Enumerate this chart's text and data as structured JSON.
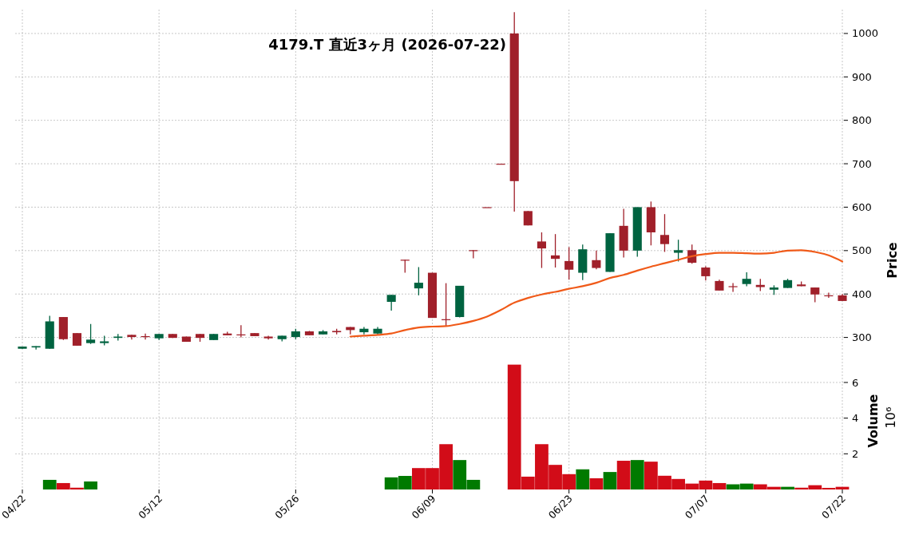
{
  "chart_data": [
    {
      "type": "candlestick",
      "title": "4179.T  直近3ヶ月  (2026-07-22)",
      "ylabel": "Price",
      "grid": true,
      "tick_labels": "y",
      "categories": [
        null,
        null,
        null,
        null,
        null,
        null,
        null,
        null,
        null,
        null,
        null,
        null,
        null,
        null,
        null,
        null,
        null,
        null,
        null,
        null,
        null,
        null,
        null,
        null,
        null,
        null,
        null,
        null,
        null,
        null,
        null,
        null,
        null,
        null,
        null,
        null,
        null,
        null,
        null,
        null,
        null,
        null,
        null,
        null,
        null,
        null,
        null,
        null,
        null,
        null,
        null,
        null,
        null,
        null,
        null,
        null,
        null,
        null,
        null,
        null,
        null
      ],
      "ohlc": [
        [
          274,
          279,
          274,
          279
        ],
        [
          277,
          280,
          272,
          280
        ],
        [
          274,
          350,
          274,
          337
        ],
        [
          347,
          347,
          294,
          296
        ],
        [
          310,
          310,
          281,
          281
        ],
        [
          287,
          331,
          285,
          295
        ],
        [
          287,
          304,
          282,
          291
        ],
        [
          299,
          308,
          293,
          302
        ],
        [
          306,
          306,
          295,
          301
        ],
        [
          303,
          309,
          295,
          301
        ],
        [
          298,
          308,
          294,
          308
        ],
        [
          308,
          308,
          299,
          299
        ],
        [
          302,
          302,
          290,
          290
        ],
        [
          308,
          308,
          290,
          299
        ],
        [
          294,
          308,
          294,
          308
        ],
        [
          309,
          313,
          305,
          305
        ],
        [
          307,
          328,
          300,
          305
        ],
        [
          310,
          310,
          303,
          303
        ],
        [
          302,
          304,
          295,
          298
        ],
        [
          296,
          304,
          291,
          304
        ],
        [
          301,
          320,
          296,
          314
        ],
        [
          314,
          315,
          305,
          305
        ],
        [
          307,
          317,
          307,
          314
        ],
        [
          315,
          320,
          307,
          312
        ],
        [
          324,
          324,
          307,
          317
        ],
        [
          312,
          324,
          307,
          320
        ],
        [
          309,
          324,
          307,
          320
        ],
        [
          382,
          398,
          362,
          398
        ],
        [
          479,
          479,
          449,
          478
        ],
        [
          413,
          462,
          397,
          426
        ],
        [
          449,
          449,
          345,
          345
        ],
        [
          342,
          425,
          326,
          341
        ],
        [
          347,
          419,
          346,
          419
        ],
        [
          501,
          501,
          482,
          500
        ],
        [
          600,
          600,
          600,
          600
        ],
        [
          700,
          700,
          700,
          700
        ],
        [
          1000,
          1049,
          590,
          660
        ],
        [
          591,
          591,
          558,
          558
        ],
        [
          521,
          542,
          460,
          505
        ],
        [
          489,
          538,
          461,
          481
        ],
        [
          476,
          508,
          433,
          456
        ],
        [
          449,
          514,
          432,
          503
        ],
        [
          478,
          500,
          457,
          460
        ],
        [
          451,
          540,
          451,
          540
        ],
        [
          557,
          596,
          484,
          500
        ],
        [
          500,
          600,
          486,
          600
        ],
        [
          600,
          613,
          512,
          542
        ],
        [
          536,
          584,
          497,
          515
        ],
        [
          495,
          525,
          475,
          501
        ],
        [
          501,
          514,
          470,
          472
        ],
        [
          461,
          464,
          431,
          441
        ],
        [
          430,
          433,
          408,
          408
        ],
        [
          418,
          425,
          405,
          416
        ],
        [
          423,
          450,
          418,
          435
        ],
        [
          421,
          435,
          407,
          416
        ],
        [
          410,
          420,
          398,
          415
        ],
        [
          414,
          435,
          414,
          432
        ],
        [
          422,
          429,
          418,
          418
        ],
        [
          415,
          415,
          381,
          399
        ],
        [
          397,
          403,
          391,
          396
        ],
        [
          397,
          400,
          384,
          384
        ]
      ],
      "colors": [
        "#006340",
        "#006340",
        "#006340",
        "#a0202a",
        "#a0202a",
        "#006340",
        "#006340",
        "#006340",
        "#a0202a",
        "#a0202a",
        "#006340",
        "#a0202a",
        "#a0202a",
        "#a0202a",
        "#006340",
        "#a0202a",
        "#a0202a",
        "#a0202a",
        "#a0202a",
        "#006340",
        "#006340",
        "#a0202a",
        "#006340",
        "#a0202a",
        "#a0202a",
        "#006340",
        "#006340",
        "#006340",
        "#a0202a",
        "#006340",
        "#a0202a",
        "#a0202a",
        "#006340",
        "#a0202a",
        "#a0202a",
        "#a0202a",
        "#a0202a",
        "#a0202a",
        "#a0202a",
        "#a0202a",
        "#a0202a",
        "#006340",
        "#a0202a",
        "#006340",
        "#a0202a",
        "#006340",
        "#a0202a",
        "#a0202a",
        "#006340",
        "#a0202a",
        "#a0202a",
        "#a0202a",
        "#a0202a",
        "#006340",
        "#a0202a",
        "#006340",
        "#006340",
        "#a0202a",
        "#a0202a",
        "#a0202a",
        "#a0202a"
      ],
      "series": [
        {
          "type": "line",
          "color": "#f05a19",
          "values": [
            null,
            null,
            null,
            null,
            null,
            null,
            null,
            null,
            null,
            null,
            null,
            null,
            null,
            null,
            null,
            null,
            null,
            null,
            null,
            null,
            null,
            null,
            null,
            null,
            302,
            304,
            306,
            309,
            317,
            323,
            325,
            326,
            331,
            338,
            348,
            363,
            380,
            391,
            399,
            405,
            412,
            418,
            426,
            437,
            444,
            454,
            463,
            471,
            479,
            487,
            492,
            495,
            495,
            494,
            493,
            495,
            500,
            501,
            497,
            489,
            475
          ]
        }
      ],
      "ylim": [
        268,
        1055
      ],
      "yticks": [
        300,
        400,
        500,
        600,
        700,
        800,
        900,
        1000
      ]
    },
    {
      "type": "bar",
      "ylabel": "Volume",
      "annotations": [
        "10⁶"
      ],
      "grid": true,
      "categories": [
        "04/22",
        null,
        null,
        null,
        null,
        null,
        null,
        null,
        null,
        null,
        "05/12",
        null,
        null,
        null,
        null,
        null,
        null,
        null,
        null,
        null,
        "05/26",
        null,
        null,
        null,
        null,
        null,
        null,
        null,
        null,
        null,
        "06/09",
        null,
        null,
        null,
        null,
        null,
        null,
        null,
        null,
        null,
        "06/23",
        null,
        null,
        null,
        null,
        null,
        null,
        null,
        null,
        null,
        "07/07",
        null,
        null,
        null,
        null,
        null,
        null,
        null,
        null,
        null,
        "07/22"
      ],
      "values": [
        null,
        null,
        0.54,
        0.36,
        0.1,
        0.45,
        null,
        null,
        null,
        null,
        null,
        null,
        null,
        null,
        null,
        null,
        null,
        null,
        null,
        null,
        null,
        null,
        null,
        null,
        null,
        null,
        null,
        0.68,
        0.76,
        1.2,
        1.2,
        2.54,
        1.65,
        0.54,
        null,
        null,
        7.0,
        0.72,
        2.54,
        1.38,
        0.86,
        1.13,
        0.63,
        0.98,
        1.61,
        1.65,
        1.56,
        0.77,
        0.59,
        0.33,
        0.5,
        0.36,
        0.29,
        0.33,
        0.29,
        0.15,
        0.15,
        0.1,
        0.24,
        0.09,
        0.15
      ],
      "colors": [
        null,
        null,
        "#007a00",
        "#d20c18",
        "#d20c18",
        "#007a00",
        null,
        null,
        null,
        null,
        null,
        null,
        null,
        null,
        null,
        null,
        null,
        null,
        null,
        null,
        null,
        null,
        null,
        null,
        null,
        null,
        null,
        "#007a00",
        "#007a00",
        "#d20c18",
        "#d20c18",
        "#d20c18",
        "#007a00",
        "#007a00",
        null,
        null,
        "#d20c18",
        "#d20c18",
        "#d20c18",
        "#d20c18",
        "#d20c18",
        "#007a00",
        "#d20c18",
        "#007a00",
        "#d20c18",
        "#007a00",
        "#d20c18",
        "#d20c18",
        "#d20c18",
        "#d20c18",
        "#d20c18",
        "#d20c18",
        "#007a00",
        "#007a00",
        "#d20c18",
        "#d20c18",
        "#007a00",
        "#d20c18",
        "#d20c18",
        "#d20c18",
        "#d20c18"
      ],
      "ylim": [
        0,
        7.7
      ],
      "yticks": [
        2,
        4,
        6
      ]
    }
  ]
}
